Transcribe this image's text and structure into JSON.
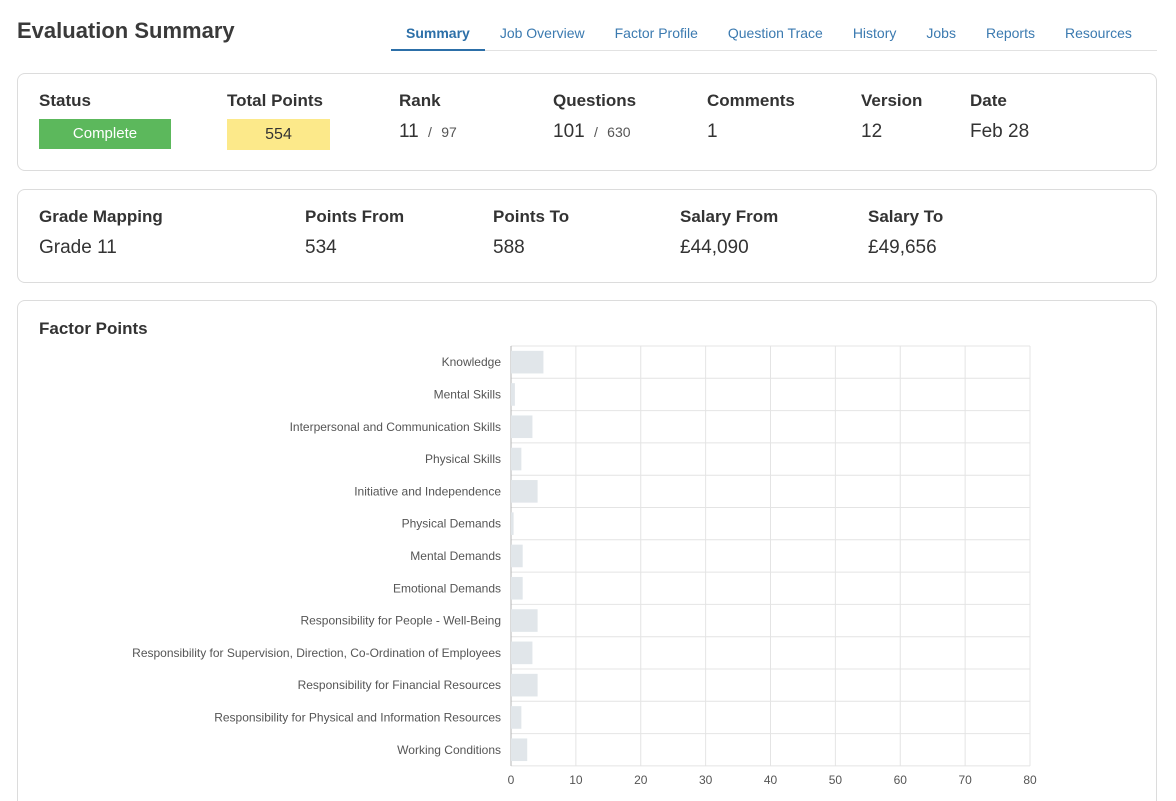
{
  "page": {
    "title": "Evaluation Summary"
  },
  "tabs": [
    {
      "label": "Summary",
      "active": true
    },
    {
      "label": "Job Overview",
      "active": false
    },
    {
      "label": "Factor Profile",
      "active": false
    },
    {
      "label": "Question Trace",
      "active": false
    },
    {
      "label": "History",
      "active": false
    },
    {
      "label": "Jobs",
      "active": false
    },
    {
      "label": "Reports",
      "active": false
    },
    {
      "label": "Resources",
      "active": false
    }
  ],
  "status_card": {
    "status": {
      "label": "Status",
      "value": "Complete",
      "color": "#5cb85c"
    },
    "total_points": {
      "label": "Total Points",
      "value": "554",
      "color": "#fce98a"
    },
    "rank": {
      "label": "Rank",
      "value": "11",
      "separator": "/",
      "total": "97"
    },
    "questions": {
      "label": "Questions",
      "value": "101",
      "separator": "/",
      "total": "630"
    },
    "comments": {
      "label": "Comments",
      "value": "1"
    },
    "version": {
      "label": "Version",
      "value": "12"
    },
    "date": {
      "label": "Date",
      "value": "Feb 28"
    }
  },
  "grade_card": {
    "grade_mapping": {
      "label": "Grade Mapping",
      "value": "Grade 11"
    },
    "points_from": {
      "label": "Points From",
      "value": "534"
    },
    "points_to": {
      "label": "Points To",
      "value": "588"
    },
    "salary_from": {
      "label": "Salary From",
      "value": "£44,090"
    },
    "salary_to": {
      "label": "Salary To",
      "value": "£49,656"
    }
  },
  "factor_card": {
    "title": "Factor Points"
  },
  "chart_data": {
    "type": "bar",
    "orientation": "horizontal",
    "title": "",
    "xlabel": "",
    "ylabel": "",
    "categories": [
      "Knowledge",
      "Mental Skills",
      "Interpersonal and Communication Skills",
      "Physical Skills",
      "Initiative and Independence",
      "Physical Demands",
      "Mental Demands",
      "Emotional Demands",
      "Responsibility for People - Well-Being",
      "Responsibility for Supervision, Direction, Co-Ordination of Employees",
      "Responsibility for Financial Resources",
      "Responsibility for Physical and Information Resources",
      "Working Conditions"
    ],
    "values": [
      5,
      0.6,
      3.3,
      1.6,
      4.1,
      0.4,
      1.8,
      1.8,
      4.1,
      3.3,
      4.1,
      1.6,
      2.5
    ],
    "xlim": [
      0,
      80
    ],
    "xticks": [
      0,
      10,
      20,
      30,
      40,
      50,
      60,
      70,
      80
    ],
    "grid": true,
    "bar_color": "#e1e6ea",
    "grid_color": "#e4e4e4"
  }
}
